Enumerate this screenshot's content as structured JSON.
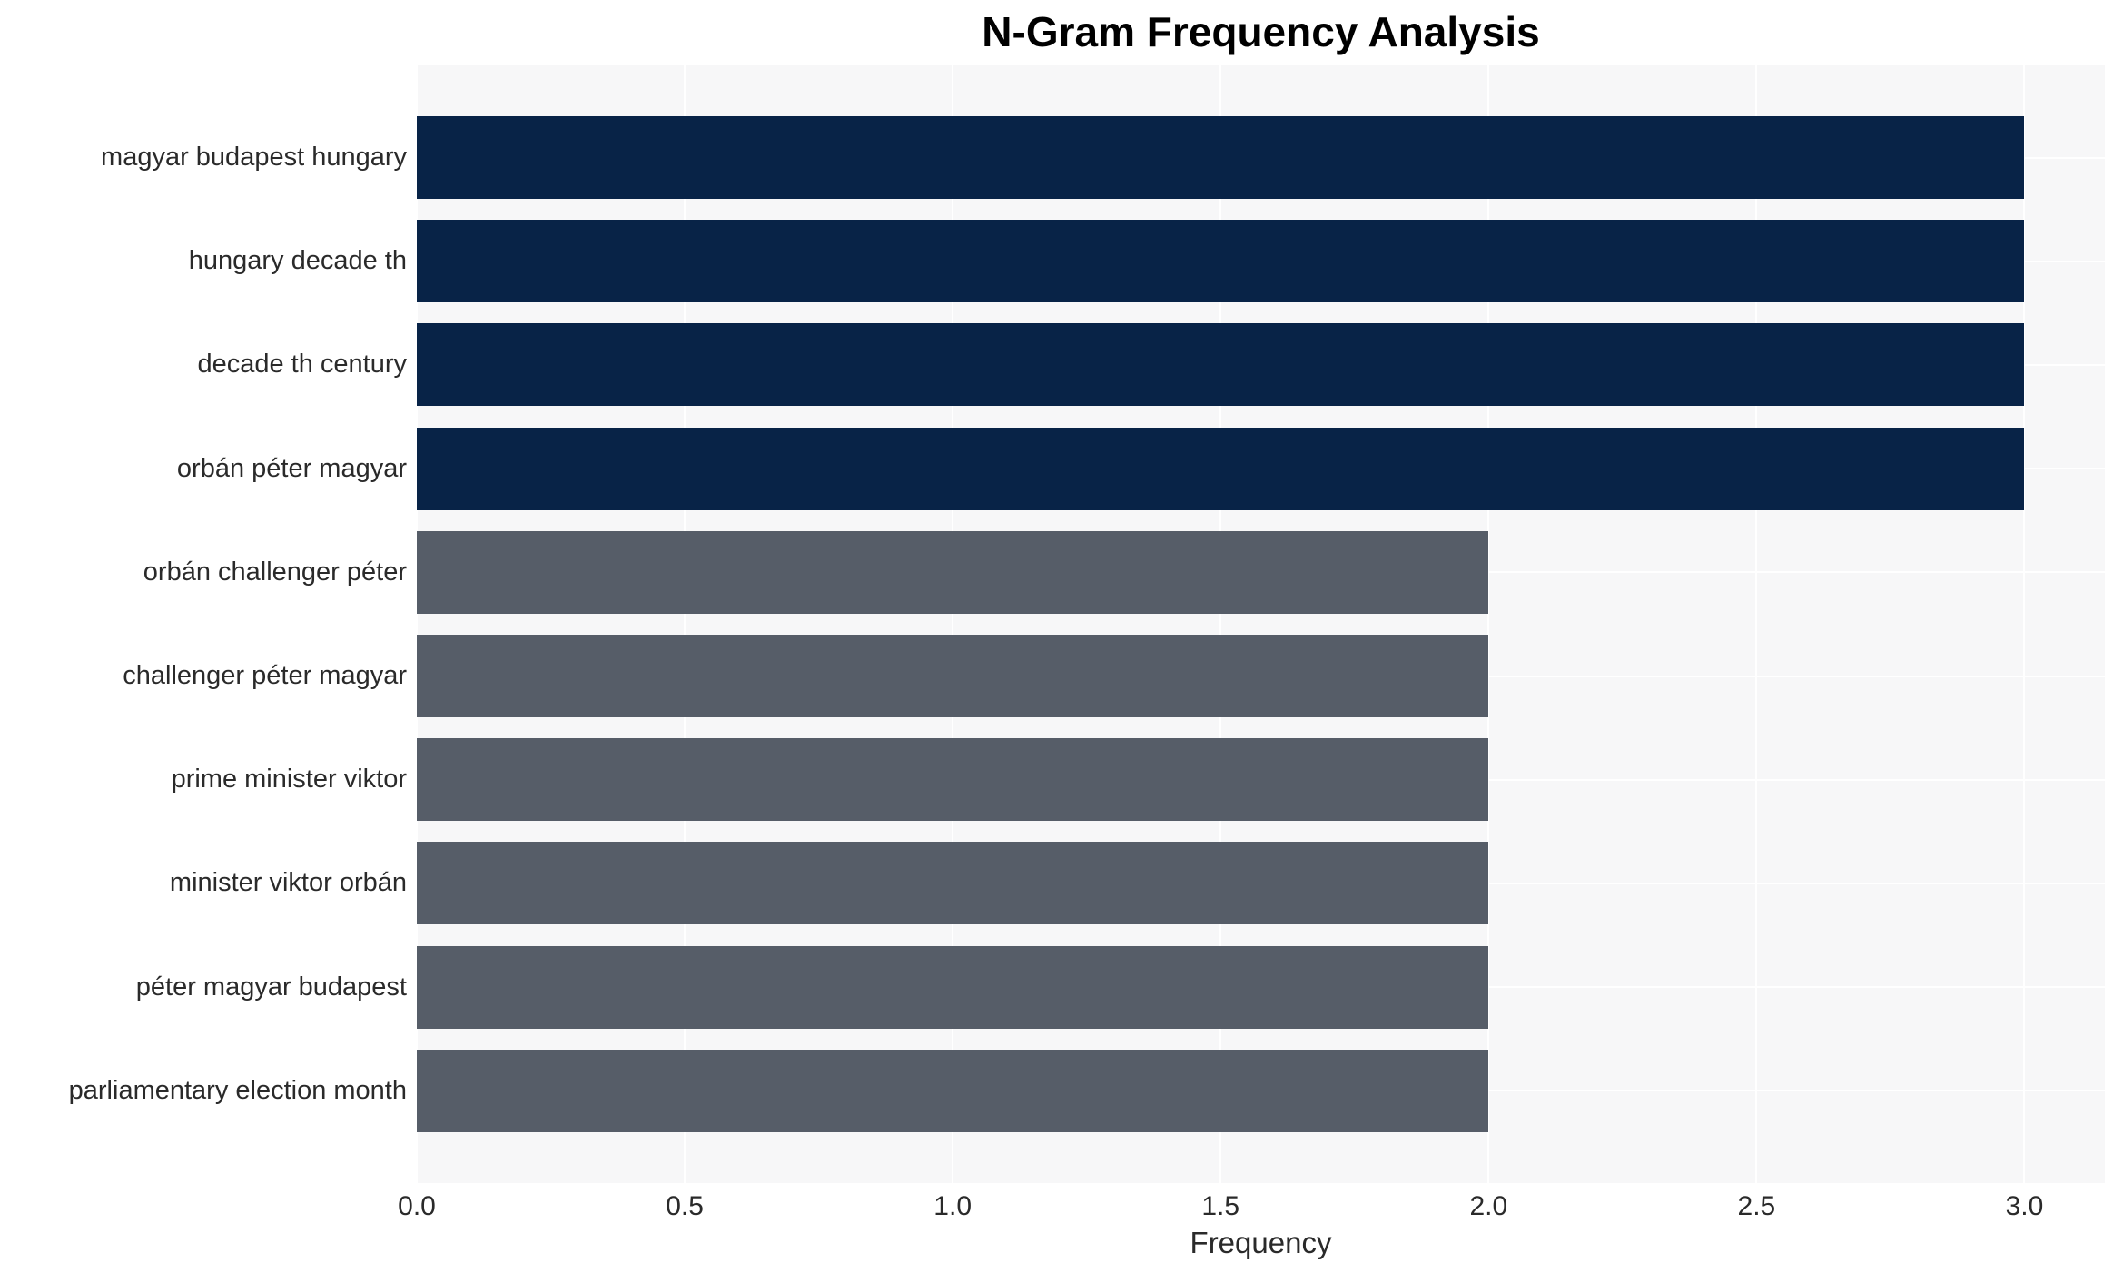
{
  "chart_data": {
    "type": "bar",
    "orientation": "horizontal",
    "title": "N-Gram Frequency Analysis",
    "xlabel": "Frequency",
    "ylabel": "",
    "categories": [
      "magyar budapest hungary",
      "hungary decade th",
      "decade th century",
      "orbán péter magyar",
      "orbán challenger péter",
      "challenger péter magyar",
      "prime minister viktor",
      "minister viktor orbán",
      "péter magyar budapest",
      "parliamentary election month"
    ],
    "values": [
      3,
      3,
      3,
      3,
      2,
      2,
      2,
      2,
      2,
      2
    ],
    "bar_colors": [
      "#082347",
      "#082347",
      "#082347",
      "#082347",
      "#565d68",
      "#565d68",
      "#565d68",
      "#565d68",
      "#565d68",
      "#565d68"
    ],
    "xlim": [
      0,
      3.15
    ],
    "xticks": [
      0.0,
      0.5,
      1.0,
      1.5,
      2.0,
      2.5,
      3.0
    ],
    "xtick_labels": [
      "0.0",
      "0.5",
      "1.0",
      "1.5",
      "2.0",
      "2.5",
      "3.0"
    ],
    "grid": true,
    "legend_position": "none",
    "colors": {
      "plot_background": "#f7f7f8",
      "gridline": "#ffffff",
      "text": "#2a2a2a",
      "title_text": "#000000"
    }
  }
}
